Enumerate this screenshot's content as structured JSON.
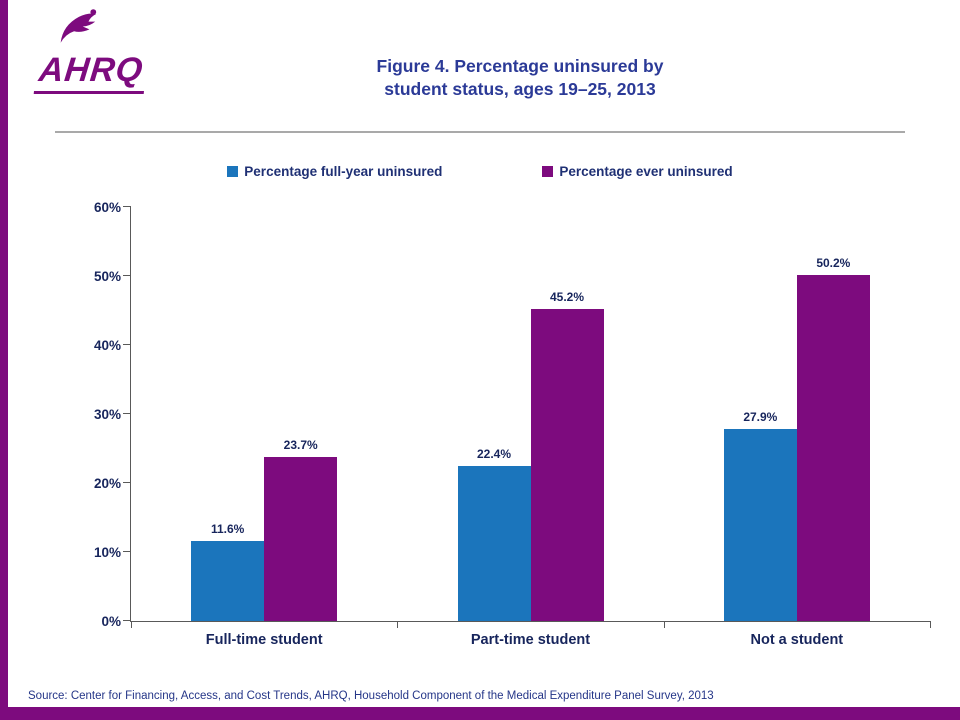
{
  "header": {
    "title_line1": "Figure 4. Percentage uninsured by",
    "title_line2": "student status, ages 19–25, 2013",
    "ahrq_logo_text": "AHRQ",
    "hhs_logo_icon": "hhs-eagle-icon"
  },
  "footer": {
    "source": "Source: Center for Financing, Access, and Cost Trends, AHRQ, Household Component of the Medical Expenditure Panel Survey, 2013"
  },
  "colors": {
    "accent_purple": "#7D0B7E",
    "series_blue": "#1B75BC",
    "series_purple": "#7D0B7E",
    "title_blue": "#2B3A97",
    "axis_text_blue": "#17255C",
    "axis_line_gray": "#595959"
  },
  "chart_data": {
    "type": "bar",
    "title": "Figure 4. Percentage uninsured by student status, ages 19–25, 2013",
    "categories": [
      "Full-time student",
      "Part-time student",
      "Not a student"
    ],
    "series": [
      {
        "name": "Percentage full-year uninsured",
        "color": "#1B75BC",
        "values": [
          11.6,
          22.4,
          27.9
        ]
      },
      {
        "name": "Percentage ever uninsured",
        "color": "#7D0B7E",
        "values": [
          23.7,
          45.2,
          50.2
        ]
      }
    ],
    "xlabel": "",
    "ylabel": "",
    "ylim": [
      0,
      60
    ],
    "ytick_step": 10,
    "ytick_suffix": "%",
    "value_label_suffix": "%",
    "grid": false,
    "legend_position": "top-center"
  }
}
